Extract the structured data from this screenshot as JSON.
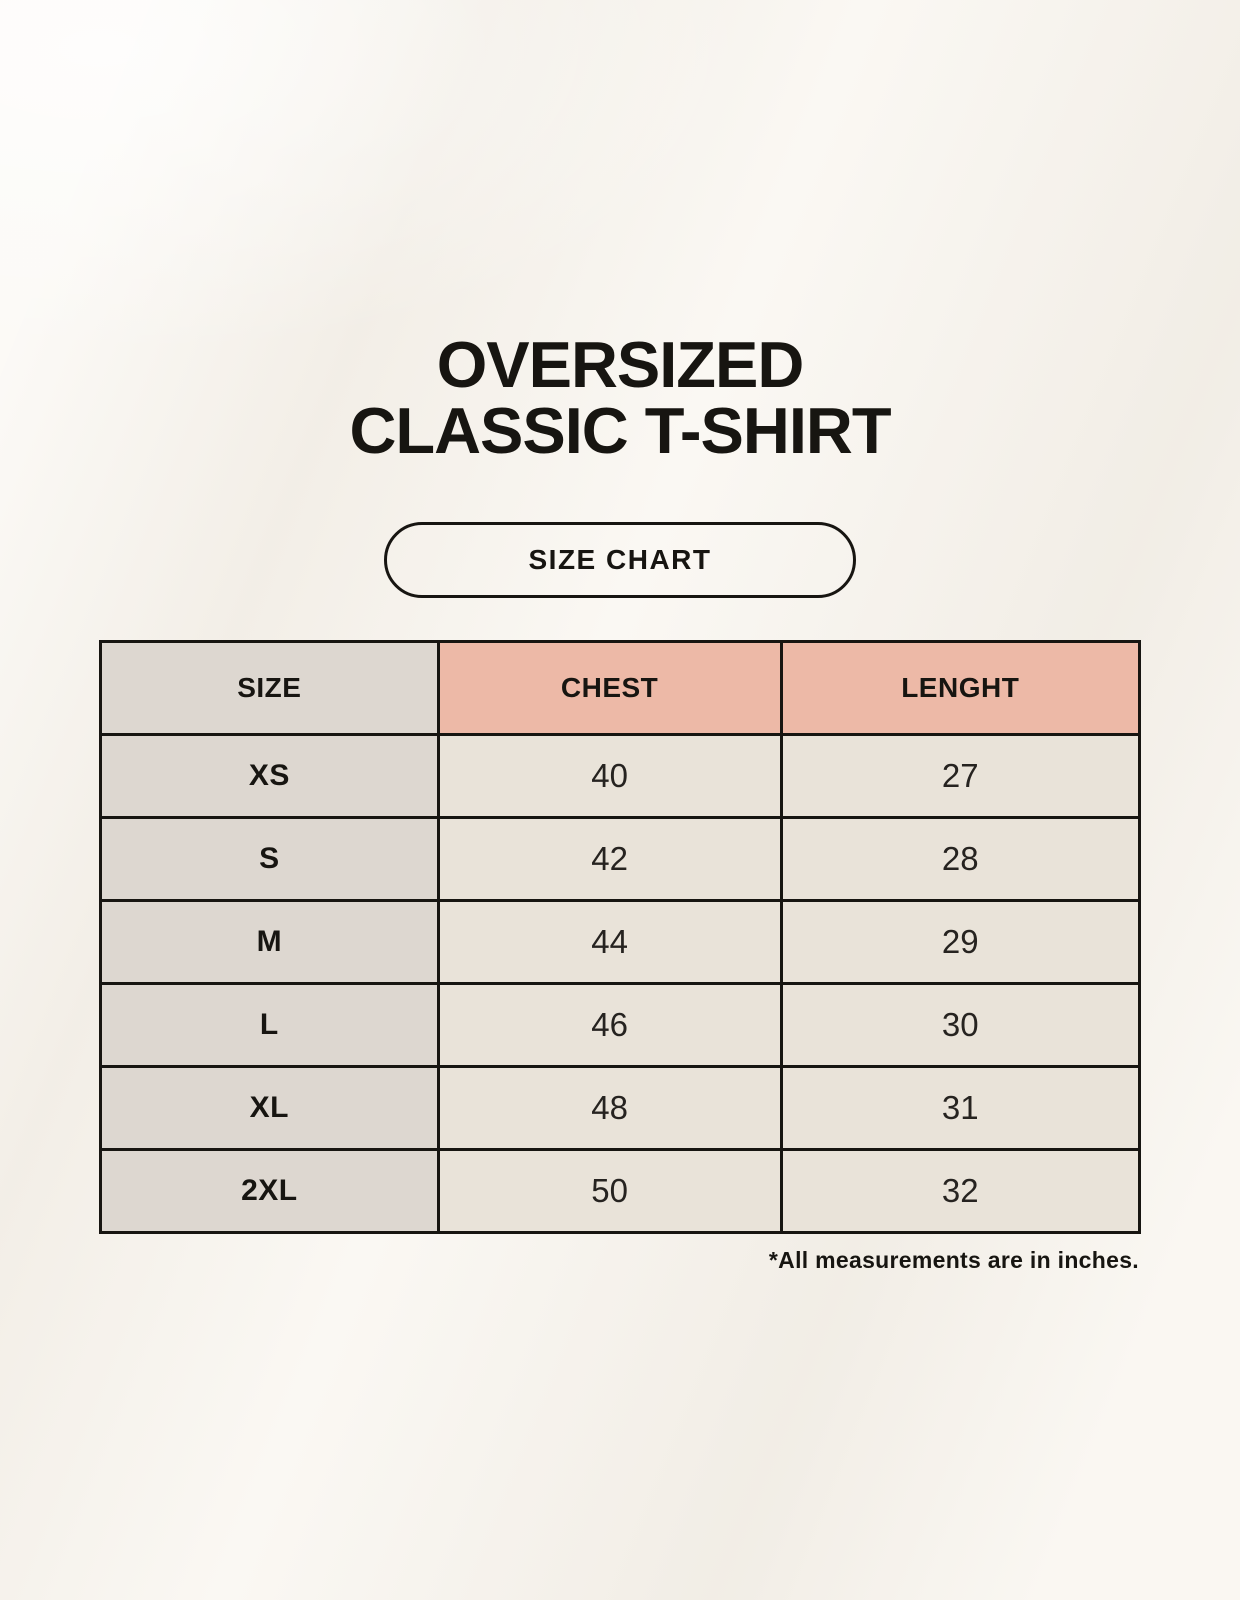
{
  "title": {
    "line1": "OVERSIZED",
    "line2": "CLASSIC T-SHIRT"
  },
  "size_chart_badge": {
    "label": "SIZE CHART"
  },
  "table": {
    "columns": [
      "SIZE",
      "CHEST",
      "LENGHT"
    ],
    "rows": [
      {
        "size": "XS",
        "chest": "40",
        "length": "27"
      },
      {
        "size": "S",
        "chest": "42",
        "length": "28"
      },
      {
        "size": "M",
        "chest": "44",
        "length": "29"
      },
      {
        "size": "L",
        "chest": "46",
        "length": "30"
      },
      {
        "size": "XL",
        "chest": "48",
        "length": "31"
      },
      {
        "size": "2XL",
        "chest": "50",
        "length": "32"
      }
    ]
  },
  "footnote": "*All measurements are in inches.",
  "colors": {
    "background": "#f8f4ed",
    "accent_salmon": "#edb9a7",
    "neutral_gray": "#ddd7d0",
    "cell_cream": "#e9e3d9",
    "border_black": "#171511",
    "text_black": "#171511"
  }
}
